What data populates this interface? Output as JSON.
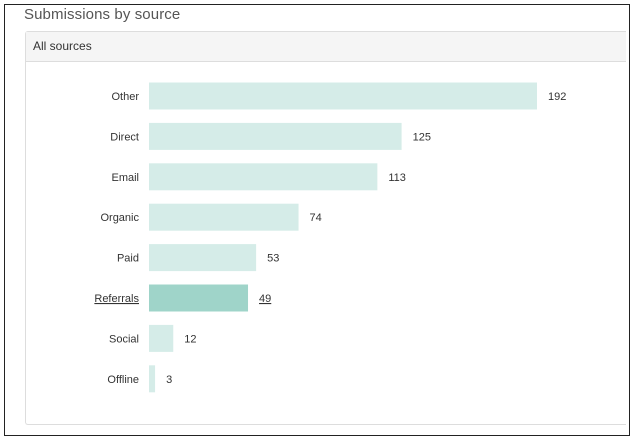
{
  "page": {
    "title": "Submissions by source"
  },
  "panel": {
    "header": "All sources"
  },
  "colors": {
    "bar": "#d5ece8",
    "bar_highlight": "#9fd4c9",
    "label": "#333333",
    "value": "#333333"
  },
  "chart_data": {
    "type": "bar",
    "orientation": "horizontal",
    "title": "Submissions by source",
    "subtitle": "All sources",
    "categories": [
      "Other",
      "Direct",
      "Email",
      "Organic",
      "Paid",
      "Referrals",
      "Social",
      "Offline"
    ],
    "values": [
      192,
      125,
      113,
      74,
      53,
      49,
      12,
      3
    ],
    "highlighted_category": "Referrals",
    "xlim": [
      0,
      192
    ],
    "grid": false,
    "legend": "none",
    "data_labels": true
  }
}
